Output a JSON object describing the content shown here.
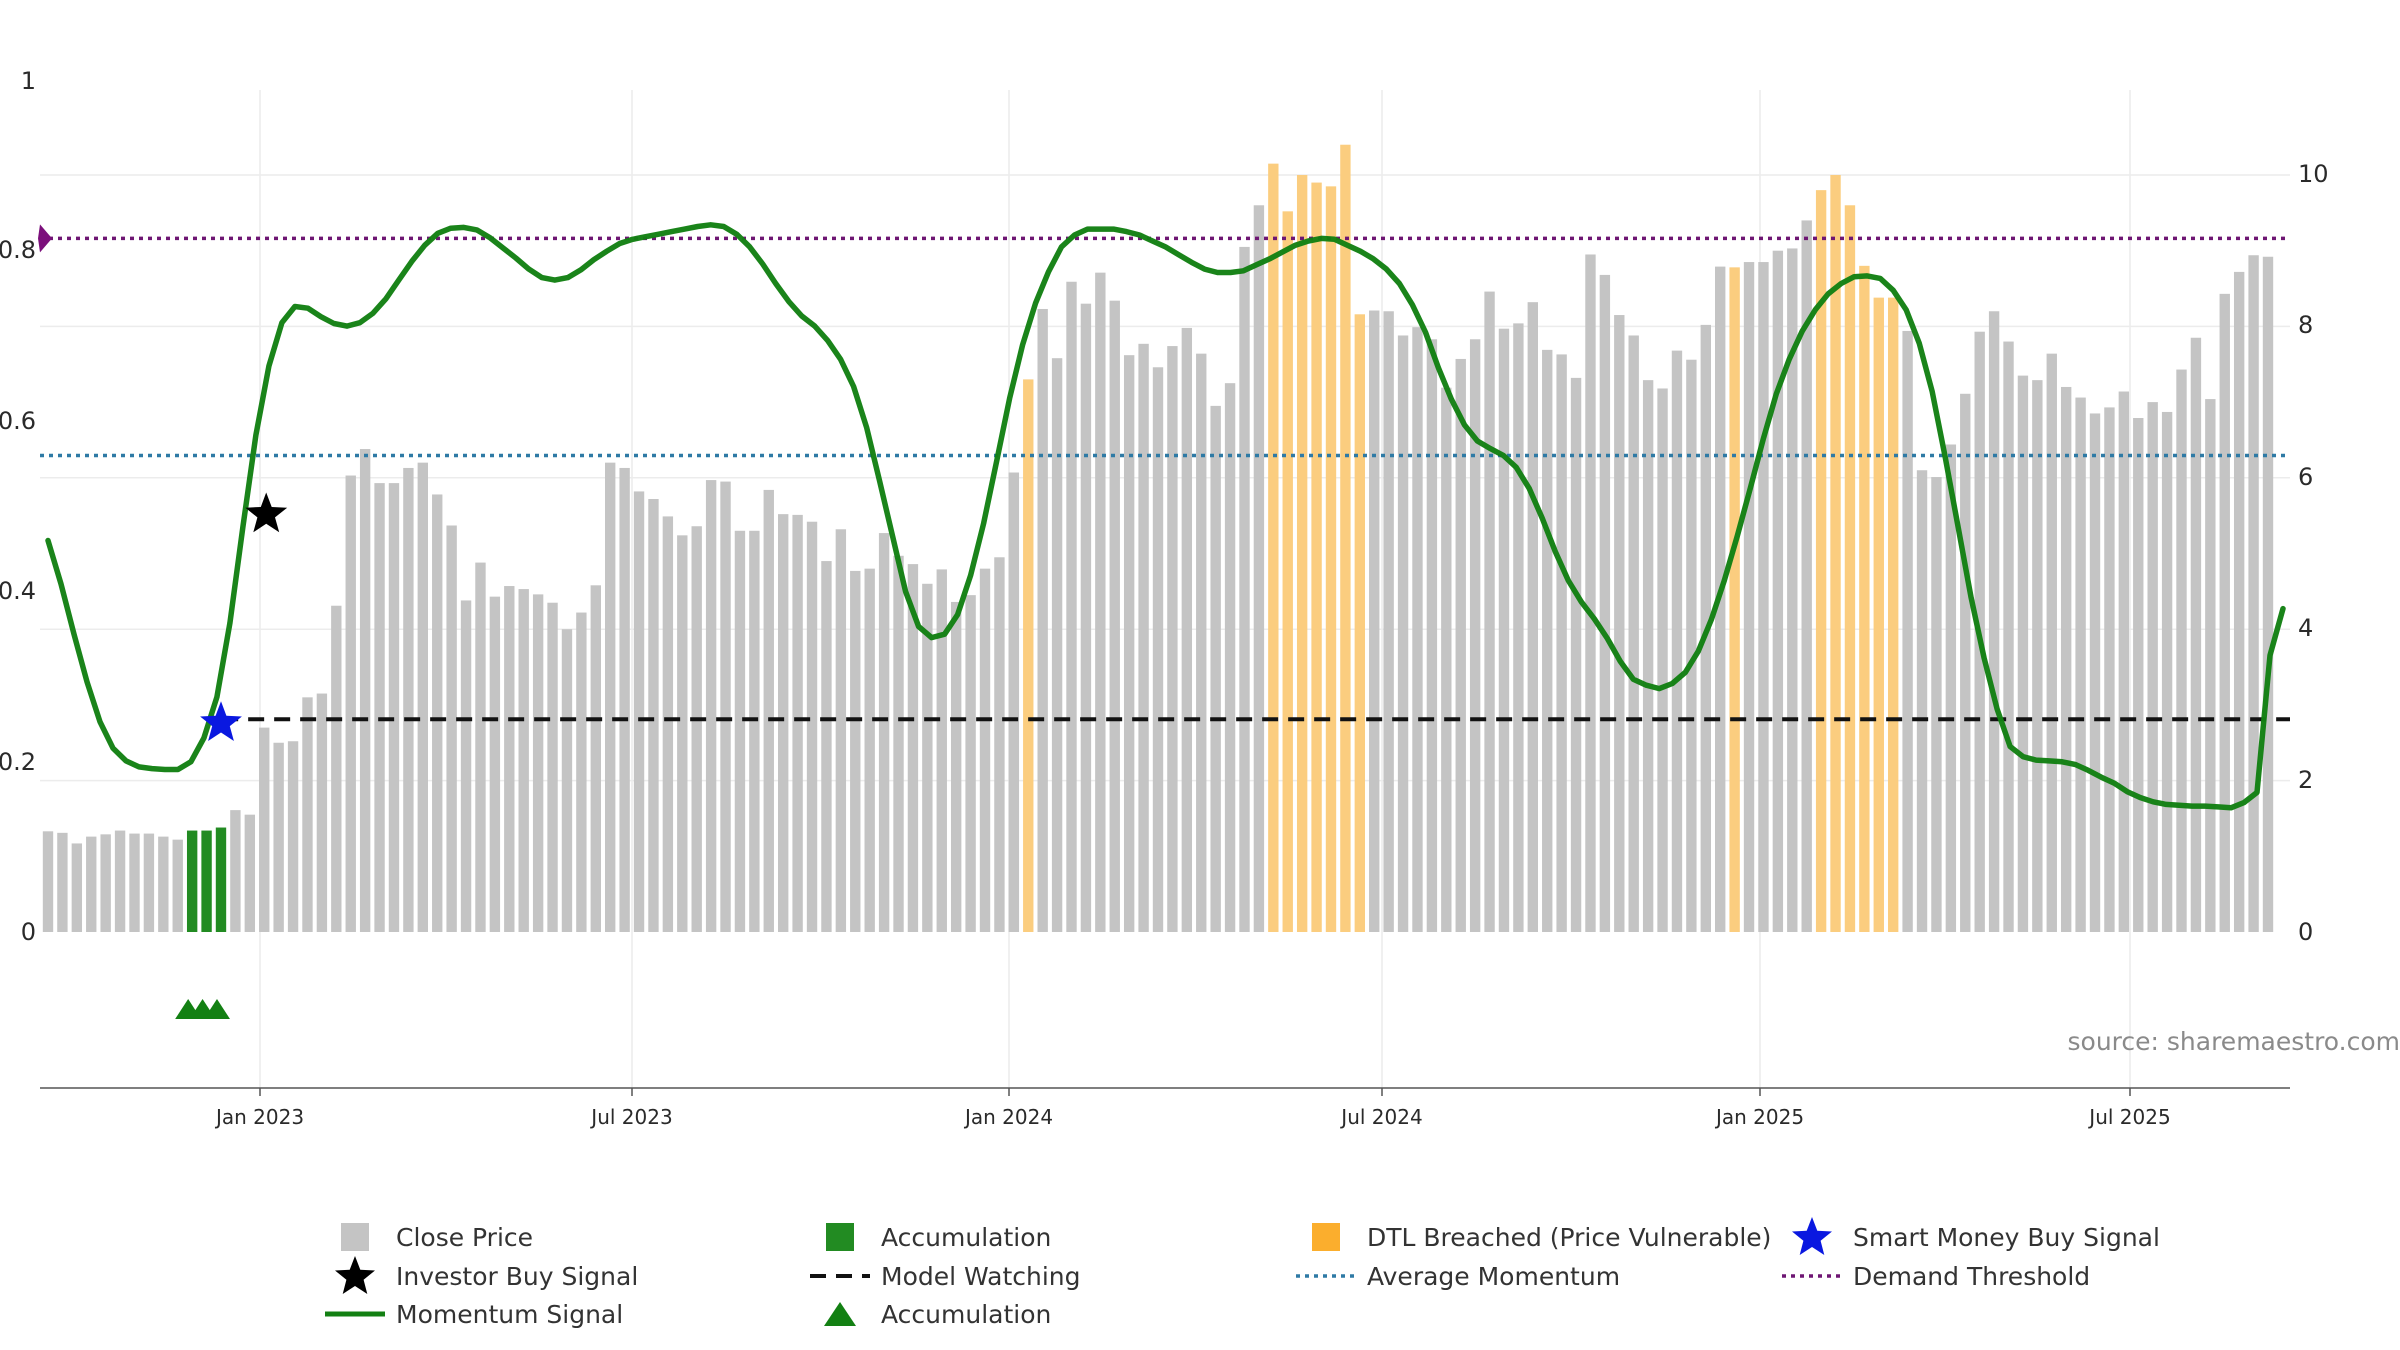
{
  "chart_data": {
    "type": "bar",
    "title": "",
    "source": "source: sharemaestro.com",
    "x_ticks": [
      "Jan 2023",
      "Jul 2023",
      "Jan 2024",
      "Jul 2024",
      "Jan 2025",
      "Jul 2025"
    ],
    "y_left": {
      "range": [
        0,
        1
      ],
      "ticks": [
        "0",
        "0.2",
        "0.4",
        "0.6",
        "0.8",
        "1"
      ]
    },
    "y_right": {
      "range": [
        0,
        10
      ],
      "ticks": [
        "0",
        "2",
        "4",
        "6",
        "8",
        "10"
      ]
    },
    "grid": true,
    "legend_position": "bottom",
    "colors": {
      "close": "#c4c4c4",
      "accumulation": "#228b22",
      "dtl": "#fbcd7f",
      "momentum": "#138013",
      "model_watching": "#111111",
      "average_momentum": "#2e7aa5",
      "demand_threshold": "#6e1673",
      "investor_star": "#000000",
      "smart_money_star": "#0a18e0",
      "demand_marker": "#7b0f7b"
    },
    "series": [
      {
        "name": "Close Price",
        "axis": "right",
        "values": [
          1.33,
          1.31,
          1.17,
          1.26,
          1.29,
          1.34,
          1.3,
          1.3,
          1.26,
          1.22,
          1.34,
          1.34,
          1.38,
          1.61,
          1.55,
          2.7,
          2.5,
          2.52,
          3.1,
          3.15,
          4.31,
          6.03,
          6.38,
          5.93,
          5.93,
          6.13,
          6.2,
          5.78,
          5.37,
          4.38,
          4.88,
          4.43,
          4.57,
          4.53,
          4.46,
          4.35,
          4.0,
          4.22,
          4.58,
          6.2,
          6.13,
          5.82,
          5.72,
          5.49,
          5.24,
          5.36,
          5.97,
          5.95,
          5.3,
          5.3,
          5.84,
          5.52,
          5.51,
          5.42,
          4.9,
          5.32,
          4.77,
          4.8,
          5.27,
          4.97,
          4.86,
          4.6,
          4.79,
          4.36,
          4.45,
          4.8,
          4.95,
          6.07,
          7.3,
          8.23,
          7.58,
          8.59,
          8.3,
          8.71,
          8.34,
          7.62,
          7.77,
          7.46,
          7.74,
          7.98,
          7.64,
          6.95,
          7.25,
          9.05,
          9.6,
          10.15,
          9.52,
          10.0,
          9.9,
          9.85,
          10.4,
          8.16,
          8.21,
          8.2,
          7.88,
          7.99,
          7.83,
          7.19,
          7.57,
          7.83,
          8.46,
          7.97,
          8.04,
          8.32,
          7.69,
          7.63,
          7.32,
          8.95,
          8.68,
          8.15,
          7.88,
          7.29,
          7.18,
          7.68,
          7.56,
          8.02,
          8.79,
          8.78,
          8.85,
          8.85,
          9.0,
          9.03,
          9.4,
          9.8,
          10.0,
          9.6,
          8.8,
          8.38,
          8.38,
          7.94,
          6.1,
          6.01,
          6.44,
          7.11,
          7.93,
          8.2,
          7.8,
          7.35,
          7.29,
          7.64,
          7.2,
          7.06,
          6.85,
          6.93,
          7.14,
          6.79,
          7.0,
          6.87,
          7.43,
          7.85,
          7.04,
          8.43,
          8.72,
          8.94,
          8.92
        ]
      },
      {
        "name": "Momentum Signal",
        "axis": "left",
        "values": [
          0.46,
          0.409,
          0.35,
          0.294,
          0.247,
          0.216,
          0.201,
          0.194,
          0.192,
          0.191,
          0.191,
          0.2,
          0.228,
          0.276,
          0.363,
          0.476,
          0.584,
          0.665,
          0.716,
          0.735,
          0.733,
          0.723,
          0.715,
          0.712,
          0.716,
          0.727,
          0.744,
          0.766,
          0.788,
          0.807,
          0.821,
          0.827,
          0.828,
          0.825,
          0.816,
          0.804,
          0.792,
          0.779,
          0.769,
          0.766,
          0.769,
          0.778,
          0.79,
          0.8,
          0.809,
          0.814,
          0.817,
          0.82,
          0.823,
          0.826,
          0.829,
          0.831,
          0.829,
          0.82,
          0.805,
          0.785,
          0.762,
          0.741,
          0.724,
          0.712,
          0.695,
          0.673,
          0.641,
          0.593,
          0.53,
          0.465,
          0.4,
          0.359,
          0.346,
          0.35,
          0.373,
          0.419,
          0.48,
          0.553,
          0.627,
          0.69,
          0.739,
          0.776,
          0.805,
          0.819,
          0.826,
          0.826,
          0.826,
          0.823,
          0.819,
          0.812,
          0.805,
          0.796,
          0.787,
          0.779,
          0.775,
          0.775,
          0.777,
          0.784,
          0.791,
          0.799,
          0.807,
          0.812,
          0.815,
          0.814,
          0.807,
          0.8,
          0.791,
          0.779,
          0.762,
          0.737,
          0.705,
          0.663,
          0.626,
          0.596,
          0.577,
          0.568,
          0.56,
          0.546,
          0.521,
          0.486,
          0.447,
          0.413,
          0.388,
          0.368,
          0.345,
          0.318,
          0.297,
          0.29,
          0.286,
          0.292,
          0.305,
          0.33,
          0.367,
          0.413,
          0.465,
          0.521,
          0.579,
          0.632,
          0.673,
          0.706,
          0.731,
          0.75,
          0.762,
          0.77,
          0.771,
          0.768,
          0.754,
          0.731,
          0.692,
          0.635,
          0.558,
          0.476,
          0.393,
          0.322,
          0.262,
          0.218,
          0.206,
          0.202,
          0.201,
          0.2,
          0.197,
          0.19,
          0.182,
          0.175,
          0.165,
          0.158,
          0.153,
          0.15,
          0.149,
          0.148,
          0.148,
          0.147,
          0.146,
          0.152,
          0.164,
          0.325,
          0.38
        ]
      },
      {
        "name": "Average Momentum",
        "axis": "left",
        "value": 0.56
      },
      {
        "name": "Demand Threshold",
        "axis": "left",
        "value": 0.815
      },
      {
        "name": "Model Watching",
        "axis": "left",
        "value": 0.25,
        "start_index": 10
      }
    ],
    "accumulation_indices": [
      10,
      11,
      12
    ],
    "dtl_indices": [
      68,
      85,
      86,
      87,
      88,
      89,
      90,
      91,
      117,
      123,
      124,
      125,
      126,
      127,
      128,
      155
    ],
    "investor_buy_signal": {
      "index": 15,
      "value": 0.5
    },
    "smart_money_buy_signal": {
      "index": 12,
      "value": 0.25
    },
    "legend": [
      {
        "label": "Close Price",
        "symbol": "square",
        "color": "#c4c4c4"
      },
      {
        "label": "Accumulation",
        "symbol": "square",
        "color": "#228b22"
      },
      {
        "label": "DTL Breached (Price Vulnerable)",
        "symbol": "square",
        "color": "#fbae2d"
      },
      {
        "label": "Smart Money Buy Signal",
        "symbol": "star",
        "color": "#0a18e0"
      },
      {
        "label": "Investor Buy Signal",
        "symbol": "star",
        "color": "#000000"
      },
      {
        "label": "Model Watching",
        "symbol": "dash",
        "color": "#111111"
      },
      {
        "label": "Average Momentum",
        "symbol": "dot",
        "color": "#2e7aa5"
      },
      {
        "label": "Demand Threshold",
        "symbol": "dot",
        "color": "#6e1673"
      },
      {
        "label": "Momentum Signal",
        "symbol": "line",
        "color": "#138013"
      },
      {
        "label": "Accumulation",
        "symbol": "triangle",
        "color": "#138013"
      }
    ]
  }
}
